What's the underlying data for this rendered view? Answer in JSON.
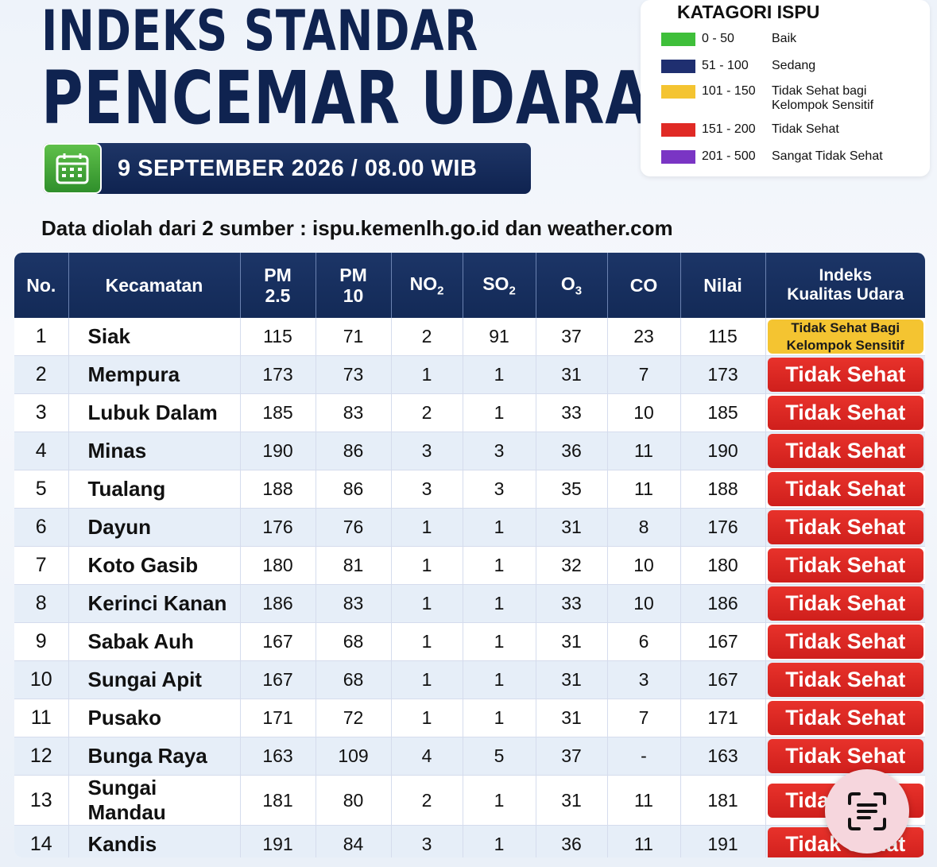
{
  "header": {
    "title_line1": "INDEKS STANDAR",
    "title_line2": "PENCEMAR UDARA",
    "date": "9 SEPTEMBER 2026 / 08.00 WIB",
    "source_prefix": "Data diolah dari 2 sumber : ",
    "source_sites": "ispu.kemenlh.go.id dan weather.com"
  },
  "legend": {
    "title": "KATAGORI ISPU",
    "items": [
      {
        "range": "0 - 50",
        "label": "Baik",
        "color": "#3fbf3a"
      },
      {
        "range": "51 - 100",
        "label": "Sedang",
        "color": "#1f2f70"
      },
      {
        "range": "101 - 150",
        "label": "Tidak Sehat bagi",
        "label2": "Kelompok Sensitif",
        "color": "#f4c431"
      },
      {
        "range": "151 - 200",
        "label": "Tidak Sehat",
        "color": "#e02a25"
      },
      {
        "range": "201 - 500",
        "label": "Sangat Tidak Sehat",
        "color": "#7a35c4"
      }
    ]
  },
  "table": {
    "headers": {
      "no": "No.",
      "kecamatan": "Kecamatan",
      "pm25_a": "PM",
      "pm25_b": "2.5",
      "pm10_a": "PM",
      "pm10_b": "10",
      "no2": "NO",
      "no2_sub": "2",
      "so2": "SO",
      "so2_sub": "2",
      "o3": "O",
      "o3_sub": "3",
      "co": "CO",
      "nilai": "Nilai",
      "index_a": "Indeks",
      "index_b": "Kualitas Udara"
    },
    "rows": [
      {
        "no": "1",
        "name": "Siak",
        "pm25": "115",
        "pm10": "71",
        "no2": "2",
        "so2": "91",
        "o3": "37",
        "co": "23",
        "nilai": "115",
        "status": "Tidak Sehat Bagi",
        "status2": "Kelompok Sensitif",
        "level": "yellow"
      },
      {
        "no": "2",
        "name": "Mempura",
        "pm25": "173",
        "pm10": "73",
        "no2": "1",
        "so2": "1",
        "o3": "31",
        "co": "7",
        "nilai": "173",
        "status": "Tidak Sehat",
        "level": "red"
      },
      {
        "no": "3",
        "name": "Lubuk Dalam",
        "pm25": "185",
        "pm10": "83",
        "no2": "2",
        "so2": "1",
        "o3": "33",
        "co": "10",
        "nilai": "185",
        "status": "Tidak Sehat",
        "level": "red"
      },
      {
        "no": "4",
        "name": "Minas",
        "pm25": "190",
        "pm10": "86",
        "no2": "3",
        "so2": "3",
        "o3": "36",
        "co": "11",
        "nilai": "190",
        "status": "Tidak Sehat",
        "level": "red"
      },
      {
        "no": "5",
        "name": "Tualang",
        "pm25": "188",
        "pm10": "86",
        "no2": "3",
        "so2": "3",
        "o3": "35",
        "co": "11",
        "nilai": "188",
        "status": "Tidak Sehat",
        "level": "red"
      },
      {
        "no": "6",
        "name": "Dayun",
        "pm25": "176",
        "pm10": "76",
        "no2": "1",
        "so2": "1",
        "o3": "31",
        "co": "8",
        "nilai": "176",
        "status": "Tidak Sehat",
        "level": "red"
      },
      {
        "no": "7",
        "name": "Koto Gasib",
        "pm25": "180",
        "pm10": "81",
        "no2": "1",
        "so2": "1",
        "o3": "32",
        "co": "10",
        "nilai": "180",
        "status": "Tidak Sehat",
        "level": "red"
      },
      {
        "no": "8",
        "name": "Kerinci Kanan",
        "pm25": "186",
        "pm10": "83",
        "no2": "1",
        "so2": "1",
        "o3": "33",
        "co": "10",
        "nilai": "186",
        "status": "Tidak Sehat",
        "level": "red"
      },
      {
        "no": "9",
        "name": "Sabak Auh",
        "pm25": "167",
        "pm10": "68",
        "no2": "1",
        "so2": "1",
        "o3": "31",
        "co": "6",
        "nilai": "167",
        "status": "Tidak Sehat",
        "level": "red"
      },
      {
        "no": "10",
        "name": "Sungai Apit",
        "pm25": "167",
        "pm10": "68",
        "no2": "1",
        "so2": "1",
        "o3": "31",
        "co": "3",
        "nilai": "167",
        "status": "Tidak Sehat",
        "level": "red"
      },
      {
        "no": "11",
        "name": "Pusako",
        "pm25": "171",
        "pm10": "72",
        "no2": "1",
        "so2": "1",
        "o3": "31",
        "co": "7",
        "nilai": "171",
        "status": "Tidak Sehat",
        "level": "red"
      },
      {
        "no": "12",
        "name": "Bunga Raya",
        "pm25": "163",
        "pm10": "109",
        "no2": "4",
        "so2": "5",
        "o3": "37",
        "co": "-",
        "nilai": "163",
        "status": "Tidak Sehat",
        "level": "red"
      },
      {
        "no": "13",
        "name": "Sungai Mandau",
        "pm25": "181",
        "pm10": "80",
        "no2": "2",
        "so2": "1",
        "o3": "31",
        "co": "11",
        "nilai": "181",
        "status": "Tidak Sehat",
        "level": "red"
      },
      {
        "no": "14",
        "name": "Kandis",
        "pm25": "191",
        "pm10": "84",
        "no2": "3",
        "so2": "1",
        "o3": "36",
        "co": "11",
        "nilai": "191",
        "status": "Tidak Sehat",
        "level": "red"
      }
    ]
  }
}
